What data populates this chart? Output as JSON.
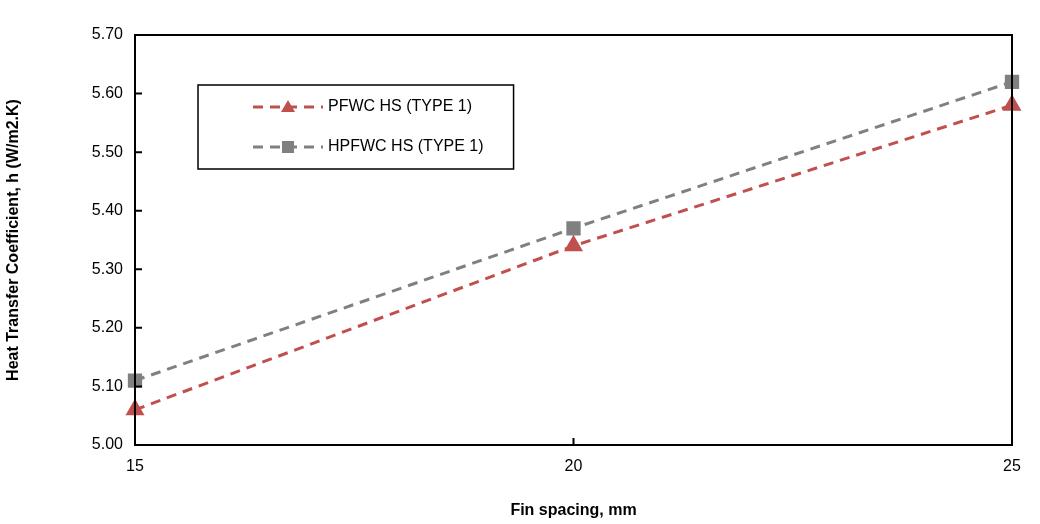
{
  "chart_data": {
    "type": "line",
    "xlabel": "Fin spacing, mm",
    "ylabel": "Heat Transfer Coefficient, h (W/m2.K)",
    "x": [
      15,
      20,
      25
    ],
    "series": [
      {
        "name": "PFWC HS (TYPE 1)",
        "color": "#c0504d",
        "marker": "triangle",
        "values": [
          5.06,
          5.34,
          5.58
        ]
      },
      {
        "name": "HPFWC HS (TYPE 1)",
        "color": "#808080",
        "marker": "square",
        "values": [
          5.11,
          5.37,
          5.62
        ]
      }
    ],
    "xlim": [
      15,
      25
    ],
    "xticks": [
      15,
      20,
      25
    ],
    "ylim": [
      5.0,
      5.7
    ],
    "yticks": [
      {
        "value": 5.0,
        "label": "5.00"
      },
      {
        "value": 5.1,
        "label": "5.10"
      },
      {
        "value": 5.2,
        "label": "5.20"
      },
      {
        "value": 5.3,
        "label": "5.30"
      },
      {
        "value": 5.4,
        "label": "5.40"
      },
      {
        "value": 5.5,
        "label": "5.50"
      },
      {
        "value": 5.6,
        "label": "5.60"
      },
      {
        "value": 5.7,
        "label": "5.70"
      }
    ],
    "grid": false,
    "legend": "top left",
    "line_style": "dashed"
  }
}
